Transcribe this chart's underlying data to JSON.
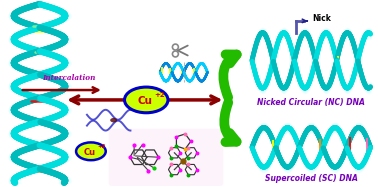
{
  "background_color": "#ffffff",
  "dna_color_backbone1": "#00dddd",
  "dna_color_backbone2": "#00bbbb",
  "dna_glow": "#aaffee",
  "base_colors": [
    "#ffff00",
    "#ff69b4",
    "#90ee90",
    "#ff8c00",
    "#ff0000"
  ],
  "arrow_color_main": "#8b0000",
  "arrow_color_dark": "#660000",
  "arrow_green": "#22bb00",
  "arrow_green_dark": "#118800",
  "cu_fill": "#ccff00",
  "cu_border": "#0000cc",
  "cu_text_color": "#cc0000",
  "cu_text": "Cu",
  "cu_sup": "+2",
  "intercalation_color": "#aa00aa",
  "intercalation_text": "Intercalation",
  "nc_label": "Nicked Circular (NC) DNA",
  "sc_label": "Supercoiled (SC) DNA",
  "nick_label": "Nick",
  "label_color": "#7700bb",
  "nick_color": "#222288",
  "fig_width": 3.78,
  "fig_height": 1.87,
  "dpi": 100
}
